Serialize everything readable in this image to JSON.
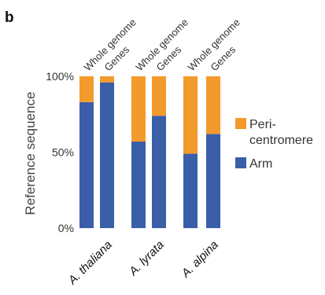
{
  "panel_label": "b",
  "chart_data": {
    "type": "bar",
    "stacked": true,
    "ylabel": "Reference  sequence",
    "ylim": [
      0,
      100
    ],
    "y_ticks": [
      "0%",
      "50%",
      "100%"
    ],
    "groups": [
      "A. thaliana",
      "A. lyrata",
      "A. alpina"
    ],
    "bar_labels": [
      "Whole genome",
      "Genes"
    ],
    "series": [
      {
        "name": "Arm",
        "color": "#3a5ea8",
        "values": [
          83,
          96,
          57,
          74,
          49,
          62
        ]
      },
      {
        "name": "Peri-centromere",
        "color": "#f39a2c",
        "values": [
          17,
          4,
          43,
          26,
          51,
          38
        ]
      }
    ],
    "legend": {
      "placement": "right",
      "items": [
        {
          "lines": [
            "Peri-",
            "centromere"
          ],
          "color": "#f39a2c"
        },
        {
          "lines": [
            "Arm"
          ],
          "color": "#3a5ea8"
        }
      ]
    }
  }
}
